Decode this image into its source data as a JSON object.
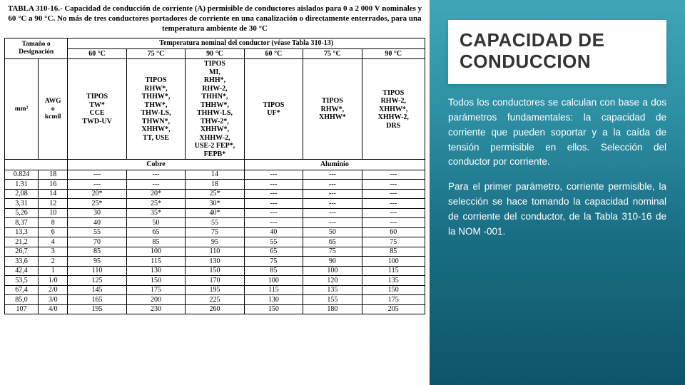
{
  "slide": {
    "title": "CAPACIDAD DE CONDUCCION",
    "para1": "Todos los conductores se calculan con base a dos parámetros fundamentales: la capacidad de corriente que pueden soportar y a la caída de tensión permisible en ellos. Selección del conductor por corriente.",
    "para2": "Para el primer parámetro, corriente permisible, la selección se hace tomando la capacidad nominal de corriente del conductor, de la Tabla 310-16 de la NOM -001."
  },
  "table": {
    "caption": "TABLA 310-16.- Capacidad de conducción de corriente (A) permisible de conductores aislados para 0 a 2 000 V nominales y 60 °C a 90 °C. No más de tres conductores portadores de corriente en una canalización o directamente enterrados, para una temperatura ambiente de 30 °C",
    "hdr_size": "Tamaño o Designación",
    "hdr_mm2": "mm²",
    "hdr_awg": "AWG\no\nkcmil",
    "hdr_temp": "Temperatura nominal del conductor (véase Tabla 310-13)",
    "temps": [
      "60 °C",
      "75 °C",
      "90 °C",
      "60 °C",
      "75 °C",
      "90 °C"
    ],
    "tipos_row_label": "TIPOS",
    "tipos": [
      "TW*\nCCE\nTWD-UV",
      "RHW*,\nTHHW*,\nTHW*,\nTHW-LS,\nTHWN*,\nXHHW*,\nTT, USE",
      "MI,\nRHH*,\nRHW-2,\nTHHN*,\nTHHW*,\nTHHW-LS,\nTHW-2*,\nXHHW*,\nXHHW-2,\nUSE-2 FEP*,\nFEPB*",
      "UF*",
      "RHW*,\nXHHW*",
      "RHW-2,\nXHHW*,\nXHHW-2,\nDRS"
    ],
    "material_labels": [
      "Cobre",
      "Aluminio"
    ],
    "rows": [
      [
        "0.824",
        "18",
        "---",
        "---",
        "14",
        "---",
        "---",
        "---"
      ],
      [
        "1.31",
        "16",
        "---",
        "---",
        "18",
        "---",
        "---",
        "---"
      ],
      [
        "2,08",
        "14",
        "20*",
        "20*",
        "25*",
        "---",
        "---",
        "---"
      ],
      [
        "3,31",
        "12",
        "25*",
        "25*",
        "30*",
        "---",
        "---",
        "---"
      ],
      [
        "5,26",
        "10",
        "30",
        "35*",
        "40*",
        "---",
        "---",
        "---"
      ],
      [
        "8,37",
        "8",
        "40",
        "50",
        "55",
        "---",
        "---",
        "---"
      ],
      [
        "13,3",
        "6",
        "55",
        "65",
        "75",
        "40",
        "50",
        "60"
      ],
      [
        "21,2",
        "4",
        "70",
        "85",
        "95",
        "55",
        "65",
        "75"
      ],
      [
        "26,7",
        "3",
        "85",
        "100",
        "110",
        "65",
        "75",
        "85"
      ],
      [
        "33,6",
        "2",
        "95",
        "115",
        "130",
        "75",
        "90",
        "100"
      ],
      [
        "42,4",
        "1",
        "110",
        "130",
        "150",
        "85",
        "100",
        "115"
      ],
      [
        "53,5",
        "1/0",
        "125",
        "150",
        "170",
        "100",
        "120",
        "135"
      ],
      [
        "67,4",
        "2/0",
        "145",
        "175",
        "195",
        "115",
        "135",
        "150"
      ],
      [
        "85,0",
        "3/0",
        "165",
        "200",
        "225",
        "130",
        "155",
        "175"
      ],
      [
        "107",
        "4/0",
        "195",
        "230",
        "260",
        "150",
        "180",
        "205"
      ]
    ]
  },
  "colors": {
    "card_bg": "#ffffff",
    "text": "#222222",
    "grad_top": "#3fa6b8",
    "grad_bot": "#0e5468"
  }
}
